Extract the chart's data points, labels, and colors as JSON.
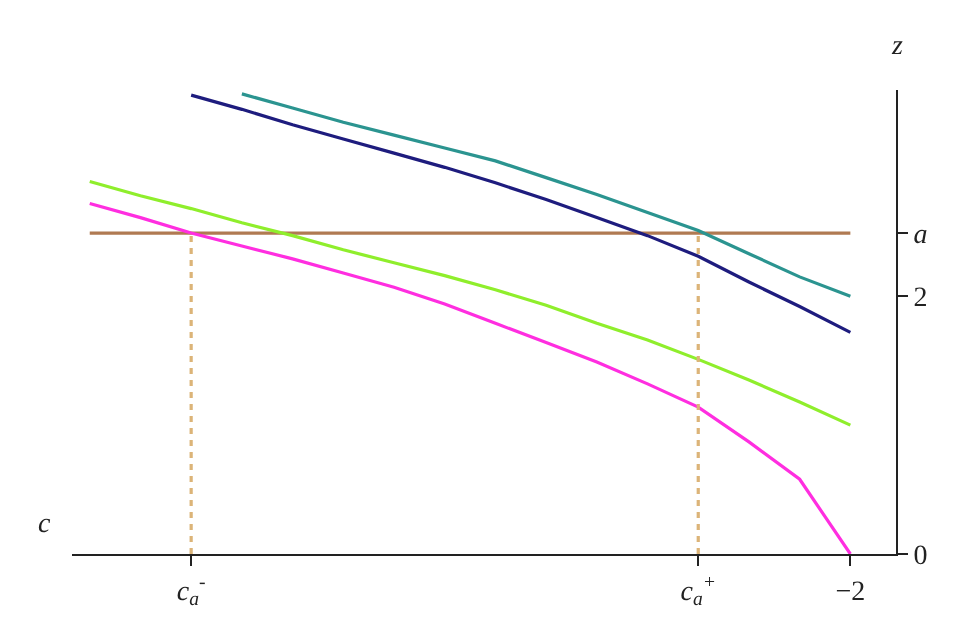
{
  "chart_data": {
    "type": "line",
    "xlabel": "c",
    "ylabel": "z",
    "categories": [
      null,
      null,
      "c$_{a}$$^{-}$",
      null,
      null,
      null,
      null,
      null,
      null,
      null,
      null,
      null,
      "c$_{a}$$^{+}$",
      null,
      null,
      "−2"
    ],
    "ylim": [
      0,
      3.6
    ],
    "yticks": [
      0,
      2,
      {
        "value": 2.49,
        "label": "a"
      }
    ],
    "marker": "none",
    "series": [
      {
        "color": "#b07a52",
        "values": [
          2.49,
          2.49,
          2.49,
          2.49,
          2.49,
          2.49,
          2.49,
          2.49,
          2.49,
          2.49,
          2.49,
          2.49,
          2.49,
          2.49,
          2.49,
          2.49
        ]
      },
      {
        "color": "#2b9490",
        "values": [
          null,
          null,
          null,
          3.57,
          3.46,
          3.35,
          3.25,
          3.15,
          3.05,
          2.92,
          2.79,
          2.65,
          2.51,
          2.33,
          2.15,
          2.0
        ]
      },
      {
        "color": "#1e1c7e",
        "values": [
          null,
          null,
          3.56,
          3.45,
          3.33,
          3.22,
          3.11,
          3.0,
          2.88,
          2.75,
          2.61,
          2.47,
          2.31,
          2.11,
          1.92,
          1.72
        ]
      },
      {
        "color": "#8fee2c",
        "values": [
          2.89,
          2.78,
          2.68,
          2.57,
          2.47,
          2.36,
          2.26,
          2.16,
          2.05,
          1.93,
          1.79,
          1.66,
          1.51,
          1.35,
          1.18,
          1.0
        ]
      },
      {
        "color": "#ff2ee0",
        "values": [
          2.72,
          2.61,
          2.49,
          2.39,
          2.29,
          2.18,
          2.07,
          1.94,
          1.79,
          1.64,
          1.49,
          1.32,
          1.14,
          0.87,
          0.58,
          0
        ]
      },
      {
        "color": "#dcb478",
        "line_style": "dotted",
        "x": [
          "c$_{a}$$^{-}$",
          "c$_{a}$$^{-}$"
        ],
        "values": [
          0,
          2.49
        ]
      },
      {
        "color": "#dcb478",
        "line_style": "dotted",
        "x": [
          "c$_{a}$$^{+}$",
          "c$_{a}$$^{+}$"
        ],
        "values": [
          0,
          2.49
        ]
      }
    ]
  }
}
